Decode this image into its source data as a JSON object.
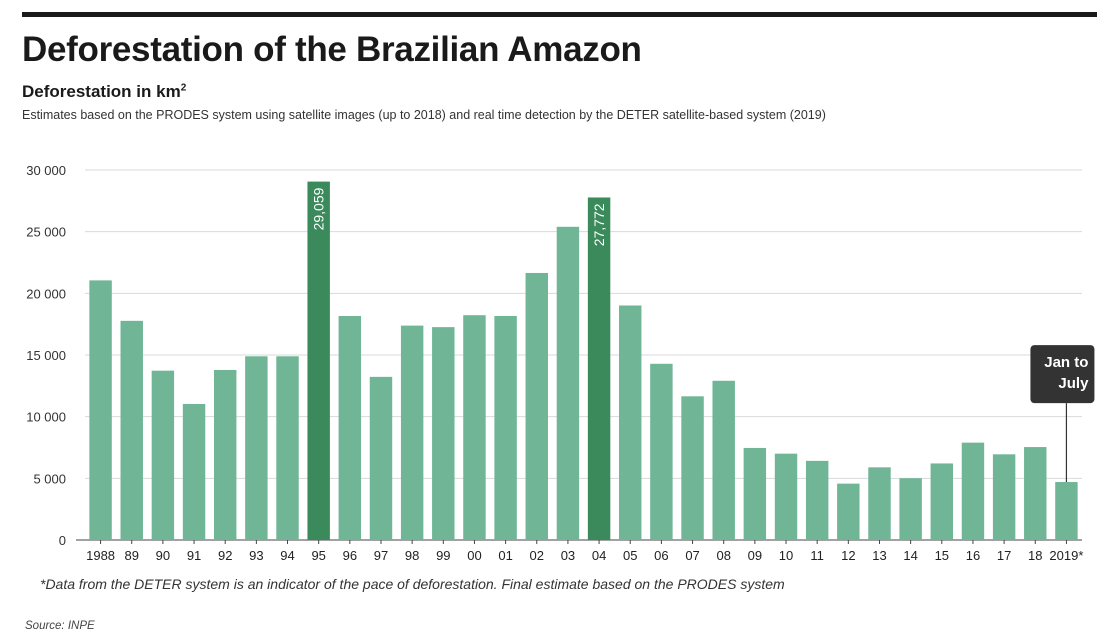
{
  "title": "Deforestation of the Brazilian Amazon",
  "subtitle": "Deforestation in km",
  "subtitle_sup": "2",
  "description": "Estimates based on the PRODES system using satellite images (up to 2018) and real time detection by the DETER satellite-based system (2019)",
  "footnote": "*Data from the DETER system is an indicator of the pace of deforestation. Final estimate based on the PRODES system",
  "source": "Source: INPE",
  "colors": {
    "bar": "#6fb596",
    "highlight": "#3a8a5c",
    "grid": "#d9d9d9",
    "callout": "#333333",
    "axis": "#444444"
  },
  "chart_data": {
    "type": "bar",
    "title": "Deforestation of the Brazilian Amazon",
    "ylabel": "Deforestation in km²",
    "ylim": [
      0,
      30000
    ],
    "yticks": [
      0,
      5000,
      10000,
      15000,
      20000,
      25000,
      30000
    ],
    "ytick_labels": [
      "0",
      "5 000",
      "10 000",
      "15 000",
      "20 000",
      "25 000",
      "30 000"
    ],
    "categories": [
      "1988",
      "89",
      "90",
      "91",
      "92",
      "93",
      "94",
      "95",
      "96",
      "97",
      "98",
      "99",
      "00",
      "01",
      "02",
      "03",
      "04",
      "05",
      "06",
      "07",
      "08",
      "09",
      "10",
      "11",
      "12",
      "13",
      "14",
      "15",
      "16",
      "17",
      "18",
      "2019*"
    ],
    "values": [
      21050,
      17770,
      13730,
      11030,
      13786,
      14896,
      14896,
      29059,
      18161,
      13227,
      17383,
      17259,
      18226,
      18165,
      21651,
      25396,
      27772,
      19014,
      14286,
      11651,
      12911,
      7464,
      7000,
      6418,
      4571,
      5891,
      5012,
      6207,
      7893,
      6947,
      7536,
      4700
    ],
    "highlighted": [
      7,
      16
    ],
    "data_labels": [
      {
        "index": 7,
        "text": "29,059"
      },
      {
        "index": 16,
        "text": "27,772"
      }
    ],
    "annotations": [
      {
        "index": 31,
        "lines": [
          "Jan to",
          "July"
        ]
      }
    ],
    "grid": true
  }
}
